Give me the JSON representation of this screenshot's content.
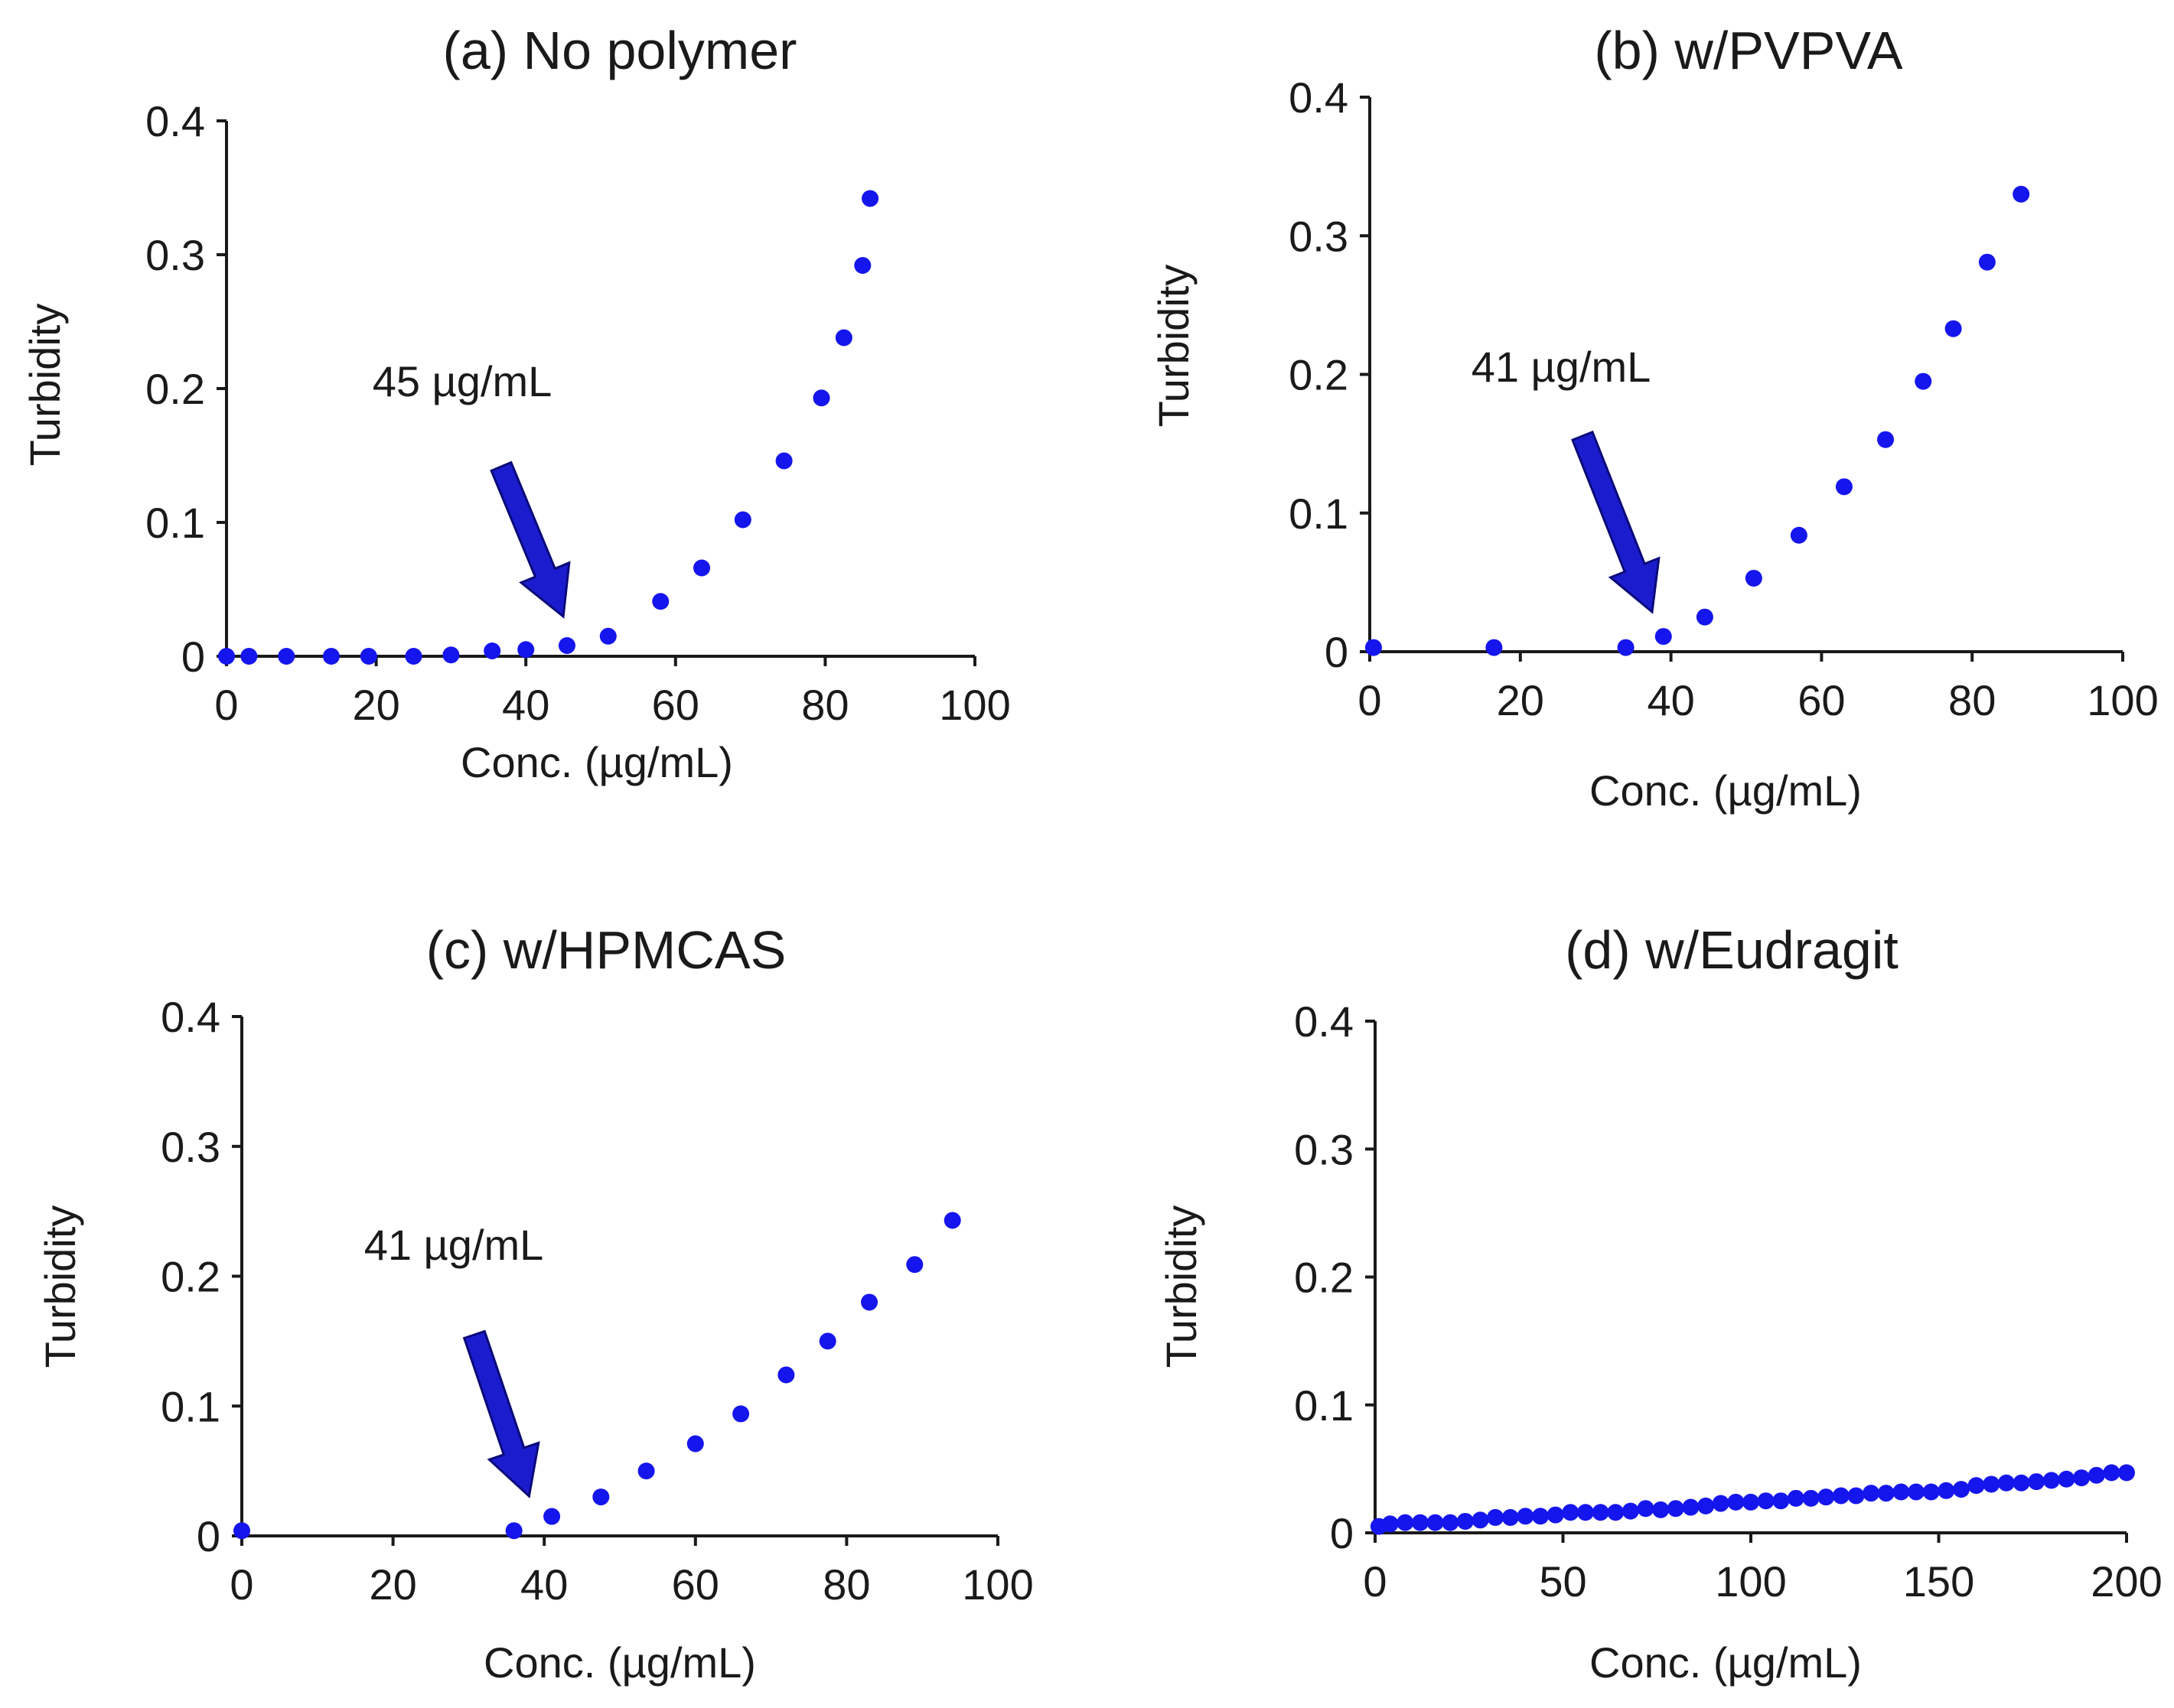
{
  "figure": {
    "colors": {
      "point": "#1515ee",
      "arrow": "#1c1ccf",
      "arrow_edge": "#0a0a7a",
      "axis": "#1a1a1a"
    }
  },
  "chart_data": [
    {
      "type": "scatter",
      "title": "(a) No polymer",
      "xlabel": "Conc. (µg/mL)",
      "ylabel": "Turbidity",
      "xlim": [
        0,
        100
      ],
      "ylim": [
        0,
        0.4
      ],
      "x_ticks": [
        0,
        20,
        40,
        60,
        80,
        100
      ],
      "y_ticks": [
        0,
        0.1,
        0.2,
        0.3,
        0.4
      ],
      "x_tick_labels": [
        "0",
        "20",
        "40",
        "60",
        "80",
        "100"
      ],
      "y_tick_labels": [
        "0",
        "0.1",
        "0.2",
        "0.3",
        "0.4"
      ],
      "annotation": {
        "text": "45 µg/mL",
        "arrow_target_x": 45
      },
      "points": [
        [
          0,
          0.0
        ],
        [
          3,
          0.0
        ],
        [
          8,
          0.0
        ],
        [
          14,
          0.0
        ],
        [
          19,
          0.0
        ],
        [
          25,
          0.0
        ],
        [
          30,
          0.001
        ],
        [
          35.5,
          0.004
        ],
        [
          40,
          0.005
        ],
        [
          45.5,
          0.008
        ],
        [
          51,
          0.015
        ],
        [
          58,
          0.041
        ],
        [
          63.5,
          0.066
        ],
        [
          69,
          0.102
        ],
        [
          74.5,
          0.146
        ],
        [
          79.5,
          0.193
        ],
        [
          82.5,
          0.238
        ],
        [
          85,
          0.292
        ],
        [
          86,
          0.342
        ]
      ]
    },
    {
      "type": "scatter",
      "title": "(b) w/PVPVA",
      "xlabel": "Conc. (µg/mL)",
      "ylabel": "Turbidity",
      "xlim": [
        0,
        100
      ],
      "ylim": [
        0,
        0.4
      ],
      "x_ticks": [
        0,
        20,
        40,
        60,
        80,
        100
      ],
      "y_ticks": [
        0,
        0.1,
        0.2,
        0.3,
        0.4
      ],
      "x_tick_labels": [
        "0",
        "20",
        "40",
        "60",
        "80",
        "100"
      ],
      "y_tick_labels": [
        "0",
        "0.1",
        "0.2",
        "0.3",
        "0.4"
      ],
      "annotation": {
        "text": "41 µg/mL",
        "arrow_target_x": 37.5
      },
      "points": [
        [
          0.5,
          0.003
        ],
        [
          16.5,
          0.003
        ],
        [
          34,
          0.003
        ],
        [
          39,
          0.011
        ],
        [
          44.5,
          0.025
        ],
        [
          51,
          0.053
        ],
        [
          57,
          0.084
        ],
        [
          63,
          0.119
        ],
        [
          68.5,
          0.153
        ],
        [
          73.5,
          0.195
        ],
        [
          77.5,
          0.233
        ],
        [
          82,
          0.281
        ],
        [
          86.5,
          0.33
        ]
      ]
    },
    {
      "type": "scatter",
      "title": "(c) w/HPMCAS",
      "xlabel": "Conc. (µg/mL)",
      "ylabel": "Turbidity",
      "xlim": [
        0,
        100
      ],
      "ylim": [
        0,
        0.4
      ],
      "x_ticks": [
        0,
        20,
        40,
        60,
        80,
        100
      ],
      "y_ticks": [
        0,
        0.1,
        0.2,
        0.3,
        0.4
      ],
      "x_tick_labels": [
        "0",
        "20",
        "40",
        "60",
        "80",
        "100"
      ],
      "y_tick_labels": [
        "0",
        "0.1",
        "0.2",
        "0.3",
        "0.4"
      ],
      "annotation": {
        "text": "41 µg/mL",
        "arrow_target_x": 38
      },
      "points": [
        [
          0,
          0.004
        ],
        [
          36,
          0.004
        ],
        [
          41,
          0.015
        ],
        [
          47.5,
          0.03
        ],
        [
          53.5,
          0.05
        ],
        [
          60,
          0.071
        ],
        [
          66,
          0.094
        ],
        [
          72,
          0.124
        ],
        [
          77.5,
          0.15
        ],
        [
          83,
          0.18
        ],
        [
          89,
          0.209
        ],
        [
          94,
          0.243
        ]
      ]
    },
    {
      "type": "scatter",
      "title": "(d) w/Eudragit",
      "xlabel": "Conc. (µg/mL)",
      "ylabel": "Turbidity",
      "xlim": [
        0,
        200
      ],
      "ylim": [
        0,
        0.4
      ],
      "x_ticks": [
        0,
        50,
        100,
        150,
        200
      ],
      "y_ticks": [
        0,
        0.1,
        0.2,
        0.3,
        0.4
      ],
      "x_tick_labels": [
        "0",
        "50",
        "100",
        "150",
        "200"
      ],
      "y_tick_labels": [
        "0",
        "0.1",
        "0.2",
        "0.3",
        "0.4"
      ],
      "annotation": null,
      "points": [
        [
          1,
          0.005
        ],
        [
          4,
          0.007
        ],
        [
          8,
          0.008
        ],
        [
          12,
          0.008
        ],
        [
          16,
          0.008
        ],
        [
          20,
          0.008
        ],
        [
          24,
          0.009
        ],
        [
          28,
          0.01
        ],
        [
          32,
          0.012
        ],
        [
          36,
          0.012
        ],
        [
          40,
          0.013
        ],
        [
          44,
          0.013
        ],
        [
          48,
          0.014
        ],
        [
          52,
          0.016
        ],
        [
          56,
          0.016
        ],
        [
          60,
          0.016
        ],
        [
          64,
          0.016
        ],
        [
          68,
          0.017
        ],
        [
          72,
          0.019
        ],
        [
          76,
          0.018
        ],
        [
          80,
          0.019
        ],
        [
          84,
          0.02
        ],
        [
          88,
          0.021
        ],
        [
          92,
          0.023
        ],
        [
          96,
          0.024
        ],
        [
          100,
          0.024
        ],
        [
          104,
          0.025
        ],
        [
          108,
          0.025
        ],
        [
          112,
          0.027
        ],
        [
          116,
          0.027
        ],
        [
          120,
          0.028
        ],
        [
          124,
          0.029
        ],
        [
          128,
          0.029
        ],
        [
          132,
          0.031
        ],
        [
          136,
          0.031
        ],
        [
          140,
          0.032
        ],
        [
          144,
          0.032
        ],
        [
          148,
          0.032
        ],
        [
          152,
          0.033
        ],
        [
          156,
          0.034
        ],
        [
          160,
          0.037
        ],
        [
          164,
          0.038
        ],
        [
          168,
          0.039
        ],
        [
          172,
          0.039
        ],
        [
          176,
          0.04
        ],
        [
          180,
          0.041
        ],
        [
          184,
          0.042
        ],
        [
          188,
          0.043
        ],
        [
          192,
          0.045
        ],
        [
          196,
          0.047
        ],
        [
          200,
          0.047
        ]
      ]
    }
  ]
}
